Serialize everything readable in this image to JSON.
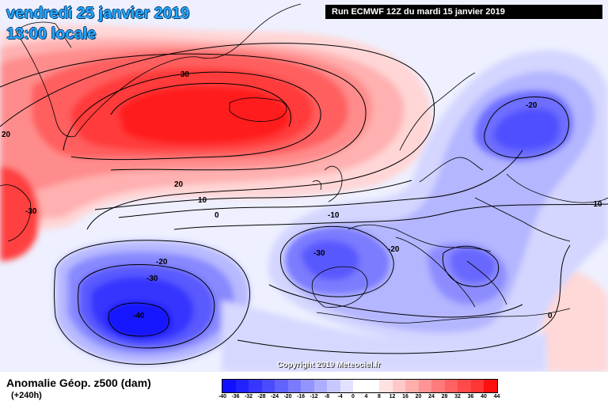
{
  "header": {
    "date_line": "vendredi 25 janvier 2019",
    "time_line": "13:00 locale",
    "run_info": "Run ECMWF 12Z du mardi 15 janvier 2019"
  },
  "footer": {
    "field_title": "Anomalie Géop. z500 (dam)",
    "lead_time": "(+240h)",
    "copyright": "Copyright 2019 Meteociel.fr"
  },
  "colorbar": {
    "colors": [
      "#1010ff",
      "#2222ff",
      "#3636ff",
      "#4a4aff",
      "#6262ff",
      "#7a7aff",
      "#9494ff",
      "#aeaeff",
      "#c8c8ff",
      "#e2e2ff",
      "#ffffff",
      "#ffffff",
      "#ffe2e2",
      "#ffc8c8",
      "#ffaeae",
      "#ff9494",
      "#ff7a7a",
      "#ff6262",
      "#ff4a4a",
      "#ff3636",
      "#ff1010"
    ],
    "labels": [
      "-40",
      "-36",
      "-32",
      "-28",
      "-24",
      "-20",
      "-16",
      "-12",
      "-8",
      "-4",
      "0",
      "4",
      "8",
      "12",
      "16",
      "20",
      "24",
      "28",
      "32",
      "36",
      "40",
      "44"
    ]
  },
  "contour_labels": [
    {
      "text": "30"
    },
    {
      "text": "20"
    },
    {
      "text": "20"
    },
    {
      "text": "10"
    },
    {
      "text": "0"
    },
    {
      "text": "-30"
    },
    {
      "text": "-20"
    },
    {
      "text": "-20"
    },
    {
      "text": "-30"
    },
    {
      "text": "-40"
    },
    {
      "text": "-30"
    },
    {
      "text": "-20"
    },
    {
      "text": "-10"
    },
    {
      "text": "-10"
    },
    {
      "text": "0"
    }
  ]
}
